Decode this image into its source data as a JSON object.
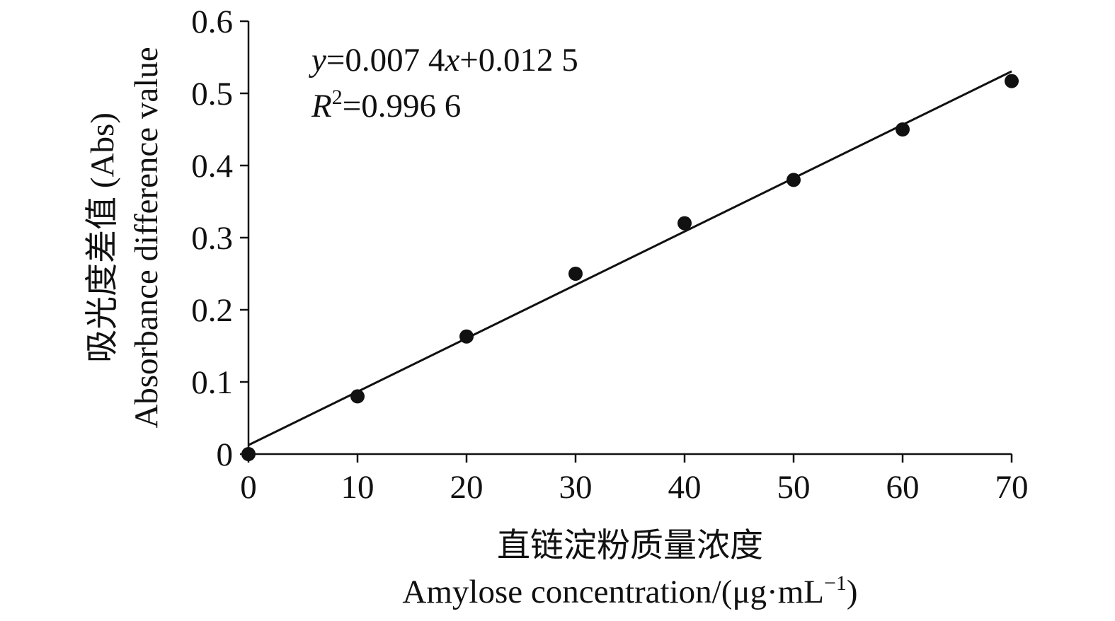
{
  "chart_data": {
    "type": "scatter",
    "x": [
      0,
      10,
      20,
      30,
      40,
      50,
      60,
      70
    ],
    "y": [
      0.0,
      0.08,
      0.163,
      0.25,
      0.32,
      0.38,
      0.45,
      0.517
    ],
    "xlim": [
      0,
      70
    ],
    "ylim": [
      0,
      0.6
    ],
    "x_ticks": [
      "0",
      "10",
      "20",
      "30",
      "40",
      "50",
      "60",
      "70"
    ],
    "y_ticks": [
      "0",
      "0.1",
      "0.2",
      "0.3",
      "0.4",
      "0.5",
      "0.6"
    ],
    "xlabel_cn": "直链淀粉质量浓度",
    "xlabel_en_prefix": "Amylose concentration/(μg·mL",
    "xlabel_en_sup": "−1",
    "xlabel_en_suffix": ")",
    "ylabel_cn": "吸光度差值 (Abs)",
    "ylabel_en": "Absorbance difference value",
    "trendline": {
      "slope": 0.0074,
      "intercept": 0.0125
    },
    "equation": {
      "y_var": "y",
      "y_rhs_a": "=0.007 4",
      "x_var": "x",
      "y_rhs_b": "+0.012 5",
      "r_var": "R",
      "r_sup": "2",
      "r_rhs": "=0.996 6"
    },
    "grid": false,
    "legend": "none",
    "marker_color": "#111111",
    "line_color": "#111111"
  }
}
